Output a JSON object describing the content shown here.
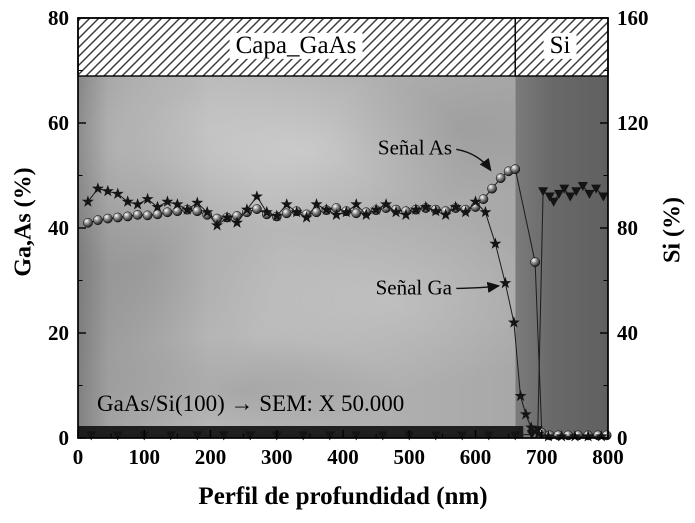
{
  "chart_data": {
    "type": "line-scatter",
    "title": "",
    "xlabel": "Perfil de profundidad (nm)",
    "ylabel_left": "Ga,As (%)",
    "ylabel_right": "Si (%)",
    "xlim": [
      0,
      800
    ],
    "ylim_left": [
      0,
      80
    ],
    "ylim_right": [
      0,
      160
    ],
    "x_ticks": [
      0,
      100,
      200,
      300,
      400,
      500,
      600,
      700,
      800
    ],
    "y_ticks_left": [
      0,
      20,
      40,
      60,
      80
    ],
    "y_ticks_right": [
      0,
      40,
      80,
      120,
      160
    ],
    "x_minor_step": 50,
    "yl_minor_step": 10,
    "yr_minor_step": 20,
    "grid": false,
    "legend_position": "none",
    "bands": [
      {
        "label": "Capa_GaAs",
        "x_range": [
          0,
          660
        ]
      },
      {
        "label": "Si",
        "x_range": [
          660,
          800
        ]
      }
    ],
    "series": [
      {
        "id": "as",
        "name": "Señal As",
        "marker": "circle",
        "axis": "left",
        "x": [
          15,
          30,
          45,
          60,
          75,
          90,
          105,
          120,
          135,
          150,
          165,
          180,
          195,
          210,
          225,
          240,
          255,
          270,
          285,
          300,
          315,
          330,
          345,
          360,
          375,
          390,
          405,
          420,
          435,
          450,
          465,
          480,
          495,
          510,
          525,
          540,
          555,
          570,
          585,
          600,
          612,
          625,
          638,
          650,
          660,
          690,
          700,
          712,
          725,
          740,
          755,
          770,
          785,
          798
        ],
        "y": [
          41,
          41.5,
          41.8,
          42,
          42.2,
          42.5,
          42.4,
          42.6,
          43,
          43.2,
          43.5,
          43.2,
          42.5,
          41.8,
          42,
          42.3,
          43,
          43.6,
          42.6,
          42.2,
          42.8,
          43.2,
          42.6,
          43,
          43.4,
          43.8,
          43.2,
          42.8,
          43,
          43.4,
          43.8,
          43.5,
          43.2,
          43.5,
          43.8,
          43.5,
          43.2,
          43.8,
          43.5,
          44,
          45.5,
          47.5,
          49.5,
          50.8,
          51.2,
          33.5,
          1,
          0.5,
          0.5,
          0.5,
          0.5,
          0.5,
          0.5,
          0.5
        ]
      },
      {
        "id": "ga",
        "name": "Señal Ga",
        "marker": "star",
        "axis": "left",
        "x": [
          15,
          30,
          45,
          60,
          75,
          90,
          105,
          120,
          135,
          150,
          165,
          180,
          195,
          210,
          225,
          240,
          255,
          270,
          285,
          300,
          315,
          330,
          345,
          360,
          375,
          390,
          405,
          420,
          435,
          450,
          465,
          480,
          495,
          510,
          525,
          540,
          555,
          570,
          585,
          600,
          615,
          630,
          645,
          658,
          668,
          676,
          684,
          695,
          710,
          730,
          750,
          770,
          790
        ],
        "y": [
          45,
          47.5,
          47,
          46.5,
          45,
          44.5,
          45.5,
          44,
          45,
          44.5,
          43.5,
          44.8,
          43,
          40.5,
          42,
          41,
          43.5,
          46,
          43,
          42.3,
          44.5,
          43,
          42,
          44.5,
          43.5,
          42.5,
          43,
          44.5,
          42.5,
          43.5,
          44.5,
          43,
          42.5,
          43.5,
          44,
          43.2,
          42.5,
          44,
          43,
          45,
          43,
          37,
          29.5,
          22,
          8,
          4.5,
          2,
          0.8,
          0.3,
          0.3,
          0.3,
          0.3,
          0.3
        ]
      },
      {
        "id": "si",
        "name": "Si",
        "marker": "triangle-down",
        "axis": "right",
        "x": [
          20,
          60,
          100,
          140,
          180,
          220,
          260,
          300,
          340,
          380,
          420,
          460,
          500,
          540,
          580,
          620,
          660,
          685,
          694,
          702,
          712,
          718,
          726,
          734,
          743,
          752,
          762,
          772,
          782,
          793
        ],
        "y": [
          1,
          1,
          1,
          1,
          1,
          1,
          1,
          1,
          1,
          1,
          1,
          1,
          1,
          1,
          1,
          1,
          1,
          1.5,
          3,
          94,
          92,
          90,
          93,
          95,
          92,
          94,
          96,
          93,
          95,
          92
        ]
      }
    ],
    "annotations": [
      {
        "name": "senal-as",
        "text": "Señal As",
        "arrow_from": [
          571,
          55
        ],
        "arrow_to": [
          623,
          51
        ]
      },
      {
        "name": "senal-ga",
        "text": "Señal Ga",
        "arrow_from": [
          571,
          28.5
        ],
        "arrow_to": [
          635,
          29
        ]
      },
      {
        "name": "caption",
        "text": "GaAs/Si(100) → SEM: X 50.000"
      }
    ],
    "colors": {
      "marker": "#141414",
      "line": "#1b1b1b",
      "sem_light": "#b5b5b5",
      "sem_dark": "#666666",
      "frame": "#000000"
    }
  }
}
